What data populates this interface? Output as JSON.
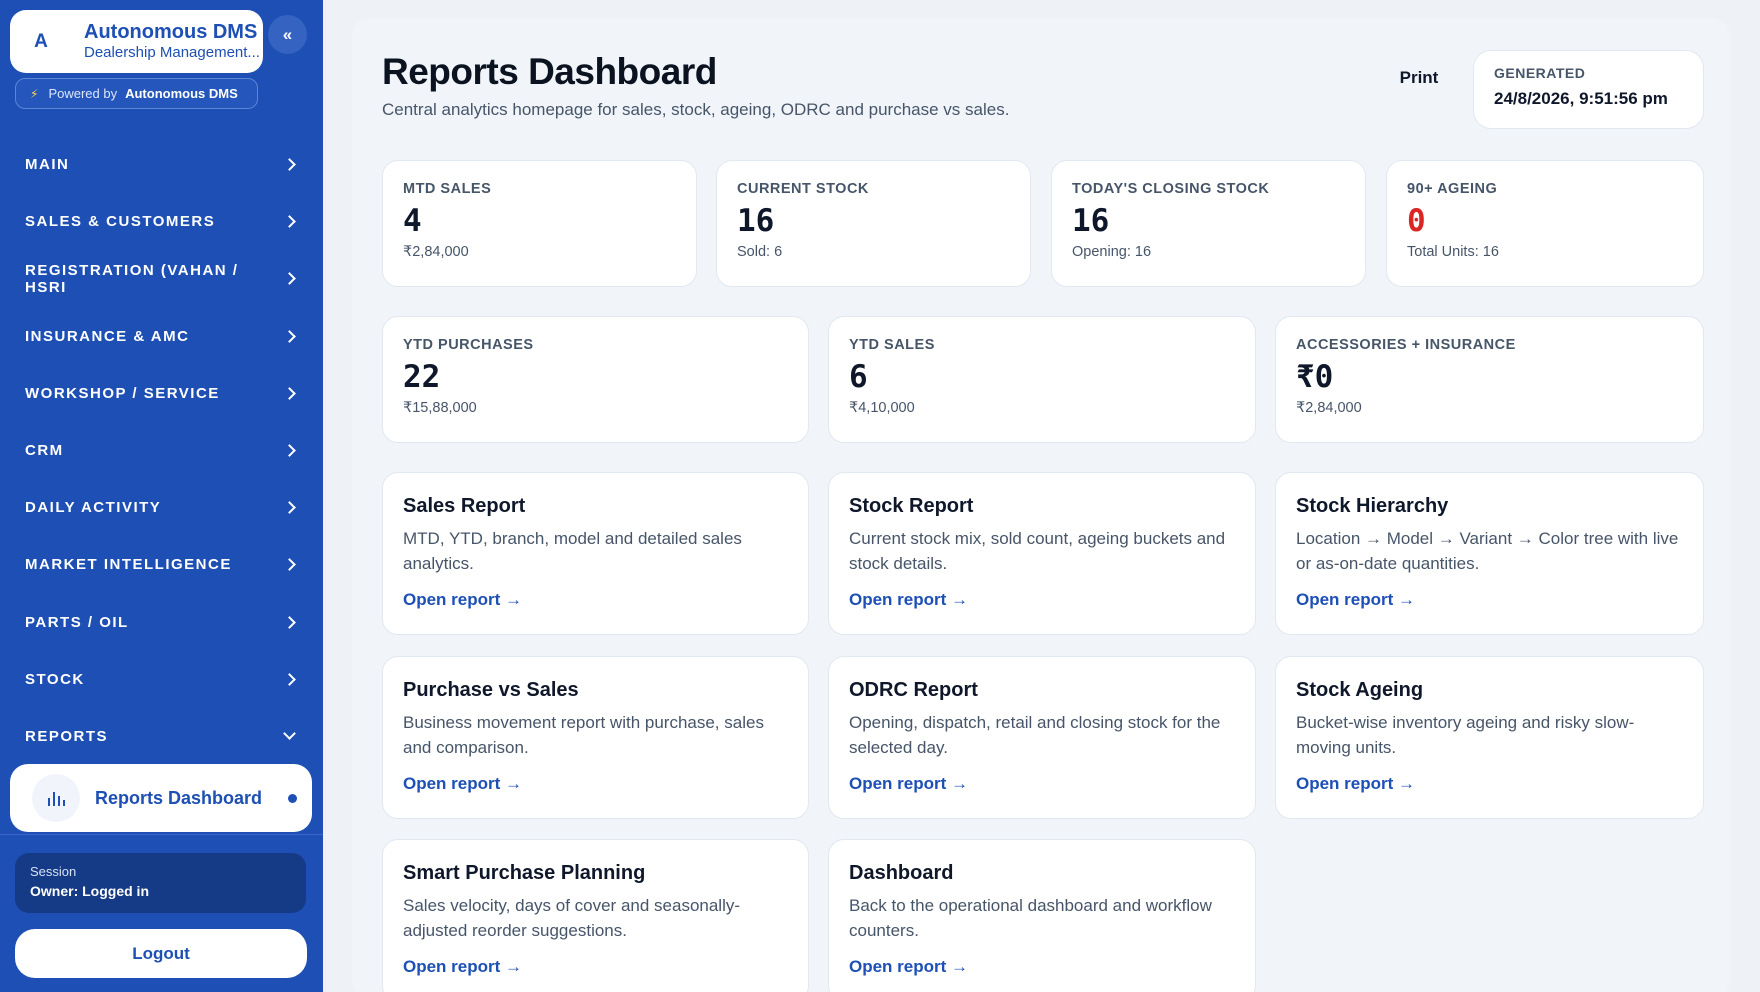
{
  "brand": {
    "avatar_letter": "A",
    "title": "Autonomous DMS",
    "subtitle": "Dealership Management...",
    "collapse_icon": "«",
    "powered_label": "Powered by",
    "powered_name": "Autonomous DMS"
  },
  "sidebar": {
    "items": [
      {
        "label": "MAIN"
      },
      {
        "label": "SALES & CUSTOMERS"
      },
      {
        "label": "REGISTRATION (VAHAN / HSRI"
      },
      {
        "label": "INSURANCE & AMC"
      },
      {
        "label": "WORKSHOP / SERVICE"
      },
      {
        "label": "CRM"
      },
      {
        "label": "DAILY ACTIVITY"
      },
      {
        "label": "MARKET INTELLIGENCE"
      },
      {
        "label": "PARTS / OIL"
      },
      {
        "label": "STOCK"
      },
      {
        "label": "REPORTS"
      }
    ],
    "active_item": "Reports Dashboard",
    "session_label": "Session",
    "session_value": "Owner: Logged in",
    "logout_label": "Logout"
  },
  "header": {
    "title": "Reports Dashboard",
    "subtitle": "Central analytics homepage for sales, stock, ageing, ODRC and purchase vs sales.",
    "print_label": "Print",
    "generated_label": "GENERATED",
    "generated_value": "24/8/2026, 9:51:56 pm"
  },
  "stats_row1": [
    {
      "label": "MTD SALES",
      "value": "4",
      "foot": "₹2,84,000"
    },
    {
      "label": "CURRENT STOCK",
      "value": "16",
      "foot": "Sold: 6"
    },
    {
      "label": "TODAY'S CLOSING STOCK",
      "value": "16",
      "foot": "Opening: 16"
    },
    {
      "label": "90+ AGEING",
      "value": "0",
      "foot": "Total Units: 16"
    }
  ],
  "stats_row2": [
    {
      "label": "YTD PURCHASES",
      "value": "22",
      "foot": "₹15,88,000"
    },
    {
      "label": "YTD SALES",
      "value": "6",
      "foot": "₹4,10,000"
    },
    {
      "label": "ACCESSORIES + INSURANCE",
      "value": "₹0",
      "foot": "₹2,84,000"
    }
  ],
  "reports": [
    {
      "title": "Sales Report",
      "desc": "MTD, YTD, branch, model and detailed sales analytics.",
      "link": "Open report →"
    },
    {
      "title": "Stock Report",
      "desc": "Current stock mix, sold count, ageing buckets and stock details.",
      "link": "Open report →"
    },
    {
      "title": "Stock Hierarchy",
      "desc": "Location → Model → Variant → Color tree with live or as-on-date quantities.",
      "link": "Open report →"
    },
    {
      "title": "Purchase vs Sales",
      "desc": "Business movement report with purchase, sales and comparison.",
      "link": "Open report →"
    },
    {
      "title": "ODRC Report",
      "desc": "Opening, dispatch, retail and closing stock for the selected day.",
      "link": "Open report →"
    },
    {
      "title": "Stock Ageing",
      "desc": "Bucket-wise inventory ageing and risky slow-moving units.",
      "link": "Open report →"
    },
    {
      "title": "Smart Purchase Planning",
      "desc": "Sales velocity, days of cover and seasonally-adjusted reorder suggestions.",
      "link": "Open report →"
    },
    {
      "title": "Dashboard",
      "desc": "Back to the operational dashboard and workflow counters.",
      "link": "Open report →"
    }
  ],
  "colors": {
    "brand_blue": "#1d4fb4",
    "alert_red": "#dc2626"
  },
  "icons": {
    "collapse": "double-chevron-left-icon",
    "powered": "lightning-bolt-icon",
    "nav": "chevron-right-icon",
    "reports_open": "chevron-down-icon",
    "active": "bar-chart-icon"
  }
}
